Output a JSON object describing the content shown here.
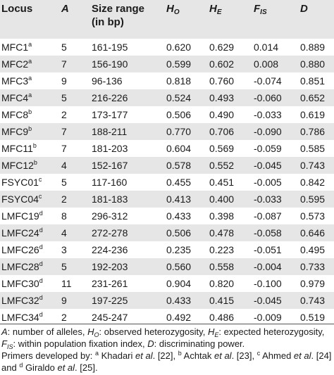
{
  "headers": {
    "locus": "Locus",
    "a": "A",
    "size_line1": "Size range",
    "size_line2": "(in bp)",
    "ho_main": "H",
    "ho_sub": "O",
    "he_main": "H",
    "he_sub": "E",
    "fis_main": "F",
    "fis_sub": "IS",
    "d": "D"
  },
  "rows": [
    {
      "locus": "MFC1",
      "sup": "a",
      "a": "5",
      "size": "161-195",
      "ho": "0.620",
      "he": "0.629",
      "fis": "0.014",
      "d": "0.889"
    },
    {
      "locus": "MFC2",
      "sup": "a",
      "a": "7",
      "size": "156-190",
      "ho": "0.599",
      "he": "0.602",
      "fis": "0.008",
      "d": "0.880"
    },
    {
      "locus": "MFC3",
      "sup": "a",
      "a": "9",
      "size": "96-136",
      "ho": "0.818",
      "he": "0.760",
      "fis": "-0.074",
      "d": "0.851"
    },
    {
      "locus": "MFC4",
      "sup": "a",
      "a": "5",
      "size": "216-226",
      "ho": "0.524",
      "he": "0.493",
      "fis": "-0.060",
      "d": "0.652"
    },
    {
      "locus": "MFC8",
      "sup": "b",
      "a": "2",
      "size": "173-177",
      "ho": "0.506",
      "he": "0.490",
      "fis": "-0.033",
      "d": "0.619"
    },
    {
      "locus": "MFC9",
      "sup": "b",
      "a": "7",
      "size": "188-211",
      "ho": "0.770",
      "he": "0.706",
      "fis": "-0.090",
      "d": "0.786"
    },
    {
      "locus": "MFC11",
      "sup": "b",
      "a": "7",
      "size": "181-203",
      "ho": "0.604",
      "he": "0.569",
      "fis": "-0.059",
      "d": "0.585"
    },
    {
      "locus": "MFC12",
      "sup": "b",
      "a": "4",
      "size": "152-167",
      "ho": "0.578",
      "he": "0.552",
      "fis": "-0.045",
      "d": "0.743"
    },
    {
      "locus": "FSYC01",
      "sup": "c",
      "a": "5",
      "size": "117-160",
      "ho": "0.455",
      "he": "0.451",
      "fis": "-0.005",
      "d": "0.842"
    },
    {
      "locus": "FSYC04",
      "sup": "c",
      "a": "2",
      "size": "181-183",
      "ho": "0.413",
      "he": "0.400",
      "fis": "-0.033",
      "d": "0.595"
    },
    {
      "locus": "LMFC19",
      "sup": "d",
      "a": "8",
      "size": "296-312",
      "ho": "0.433",
      "he": "0.398",
      "fis": "-0.087",
      "d": "0.573"
    },
    {
      "locus": "LMFC24",
      "sup": "d",
      "a": "4",
      "size": "272-278",
      "ho": "0.506",
      "he": "0.478",
      "fis": "-0.058",
      "d": "0.646"
    },
    {
      "locus": "LMFC26",
      "sup": "d",
      "a": "3",
      "size": "224-236",
      "ho": "0.235",
      "he": "0.223",
      "fis": "-0.051",
      "d": "0.495"
    },
    {
      "locus": "LMFC28",
      "sup": "d",
      "a": "5",
      "size": "192-203",
      "ho": "0.560",
      "he": "0.558",
      "fis": "-0.004",
      "d": "0.733"
    },
    {
      "locus": "LMFC30",
      "sup": "d",
      "a": "11",
      "size": "231-261",
      "ho": "0.904",
      "he": "0.820",
      "fis": "-0.100",
      "d": "0.979"
    },
    {
      "locus": "LMFC32",
      "sup": "d",
      "a": "9",
      "size": "197-225",
      "ho": "0.433",
      "he": "0.415",
      "fis": "-0.045",
      "d": "0.743"
    },
    {
      "locus": "LMFC34",
      "sup": "d",
      "a": "2",
      "size": "245-247",
      "ho": "0.492",
      "he": "0.486",
      "fis": "-0.009",
      "d": "0.519"
    }
  ],
  "footnote": {
    "a_letter": "A",
    "a_text": ": number of alleles, ",
    "ho_main": "H",
    "ho_sub": "O",
    "ho_text": ": observed heterozygosity, ",
    "he_main": "H",
    "he_sub": "E",
    "he_text": ": expected heterozygosity, ",
    "fis_main": "F",
    "fis_sub": "IS",
    "fis_text": ": within population fixation index, ",
    "d_letter": "D",
    "d_text": ": discriminating power.",
    "primers_text": "Primers developed by: ",
    "ref_a_sup": "a",
    "ref_a_name": " Khadari ",
    "ref_a_etal": "et al",
    "ref_a_cite": ". [22], ",
    "ref_b_sup": "b",
    "ref_b_name": " Achtak ",
    "ref_b_etal": "et al",
    "ref_b_cite": ". [23], ",
    "ref_c_sup": "c",
    "ref_c_name": " Ahmed ",
    "ref_c_etal": "et al",
    "ref_c_cite": ". [24] and ",
    "ref_d_sup": "d",
    "ref_d_name": " Giraldo ",
    "ref_d_etal": "et al",
    "ref_d_cite": ". [25]."
  }
}
